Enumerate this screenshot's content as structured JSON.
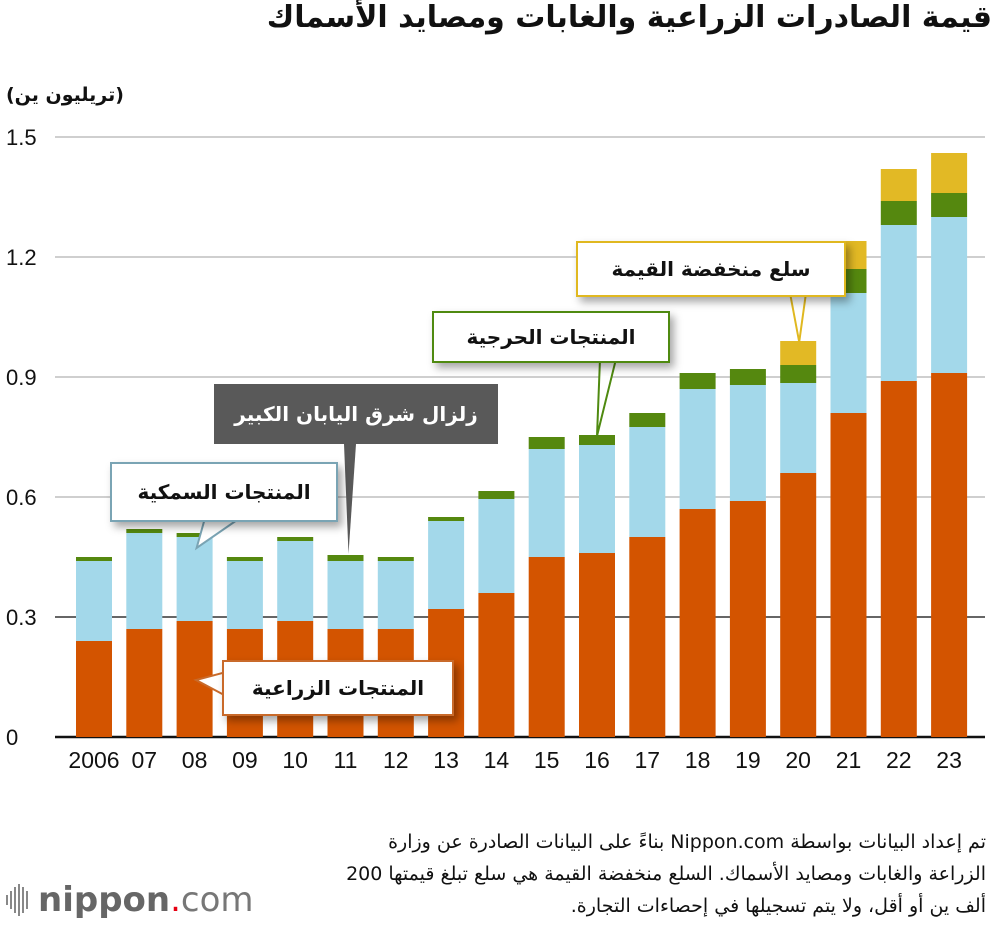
{
  "title": "قيمة الصادرات الزراعية والغابات ومصايد الأسماك",
  "unit_label": "(تريليون ين)",
  "annotations": {
    "fish": "المنتجات السمكية",
    "earthquake": "زلزال شرق اليابان الكبير",
    "agri": "المنتجات الزراعية",
    "forest": "المنتجات الحرجية",
    "low_value": "سلع منخفضة القيمة"
  },
  "footnote": "تم إعداد البيانات بواسطة Nippon.com بناءً على البيانات الصادرة عن وزارة الزراعة والغابات ومصايد الأسماك. السلع منخفضة القيمة هي سلع تبلغ قيمتها 200 ألف ين أو أقل، ولا يتم تسجيلها في إحصاءات التجارة.",
  "logo": {
    "name": "nippon",
    "dot": ".",
    "tld": "com"
  },
  "colors": {
    "agri": "#d35400",
    "fish": "#a3d8ea",
    "forest": "#55880f",
    "low_value": "#e2b925"
  },
  "chart_data": {
    "type": "bar",
    "stacked": true,
    "title": "قيمة الصادرات الزراعية والغابات ومصايد الأسماك",
    "xlabel": "",
    "ylabel": "(تريليون ين)",
    "ylim": [
      0,
      1.5
    ],
    "yticks": [
      0,
      0.3,
      0.6,
      0.9,
      1.2,
      1.5
    ],
    "ytick_labels": [
      "0",
      "0.3",
      "0.6",
      "0.9",
      "1.2",
      "1.5"
    ],
    "grid": true,
    "categories": [
      "2006",
      "07",
      "08",
      "09",
      "10",
      "11",
      "12",
      "13",
      "14",
      "15",
      "16",
      "17",
      "18",
      "19",
      "20",
      "21",
      "22",
      "23"
    ],
    "series": [
      {
        "name": "المنتجات الزراعية",
        "key": "agri",
        "values": [
          0.24,
          0.27,
          0.29,
          0.27,
          0.29,
          0.27,
          0.27,
          0.32,
          0.36,
          0.45,
          0.46,
          0.5,
          0.57,
          0.59,
          0.66,
          0.81,
          0.89,
          0.91
        ]
      },
      {
        "name": "المنتجات السمكية",
        "key": "fish",
        "values": [
          0.2,
          0.24,
          0.21,
          0.17,
          0.2,
          0.17,
          0.17,
          0.22,
          0.235,
          0.27,
          0.27,
          0.275,
          0.3,
          0.29,
          0.225,
          0.3,
          0.39,
          0.39
        ]
      },
      {
        "name": "المنتجات الحرجية",
        "key": "forest",
        "values": [
          0.01,
          0.01,
          0.01,
          0.01,
          0.01,
          0.015,
          0.01,
          0.01,
          0.02,
          0.03,
          0.025,
          0.035,
          0.04,
          0.04,
          0.045,
          0.06,
          0.06,
          0.06
        ]
      },
      {
        "name": "سلع منخفضة القيمة",
        "key": "low_value",
        "values": [
          0,
          0,
          0,
          0,
          0,
          0,
          0,
          0,
          0,
          0,
          0,
          0,
          0,
          0,
          0.06,
          0.07,
          0.08,
          0.1
        ]
      }
    ]
  }
}
